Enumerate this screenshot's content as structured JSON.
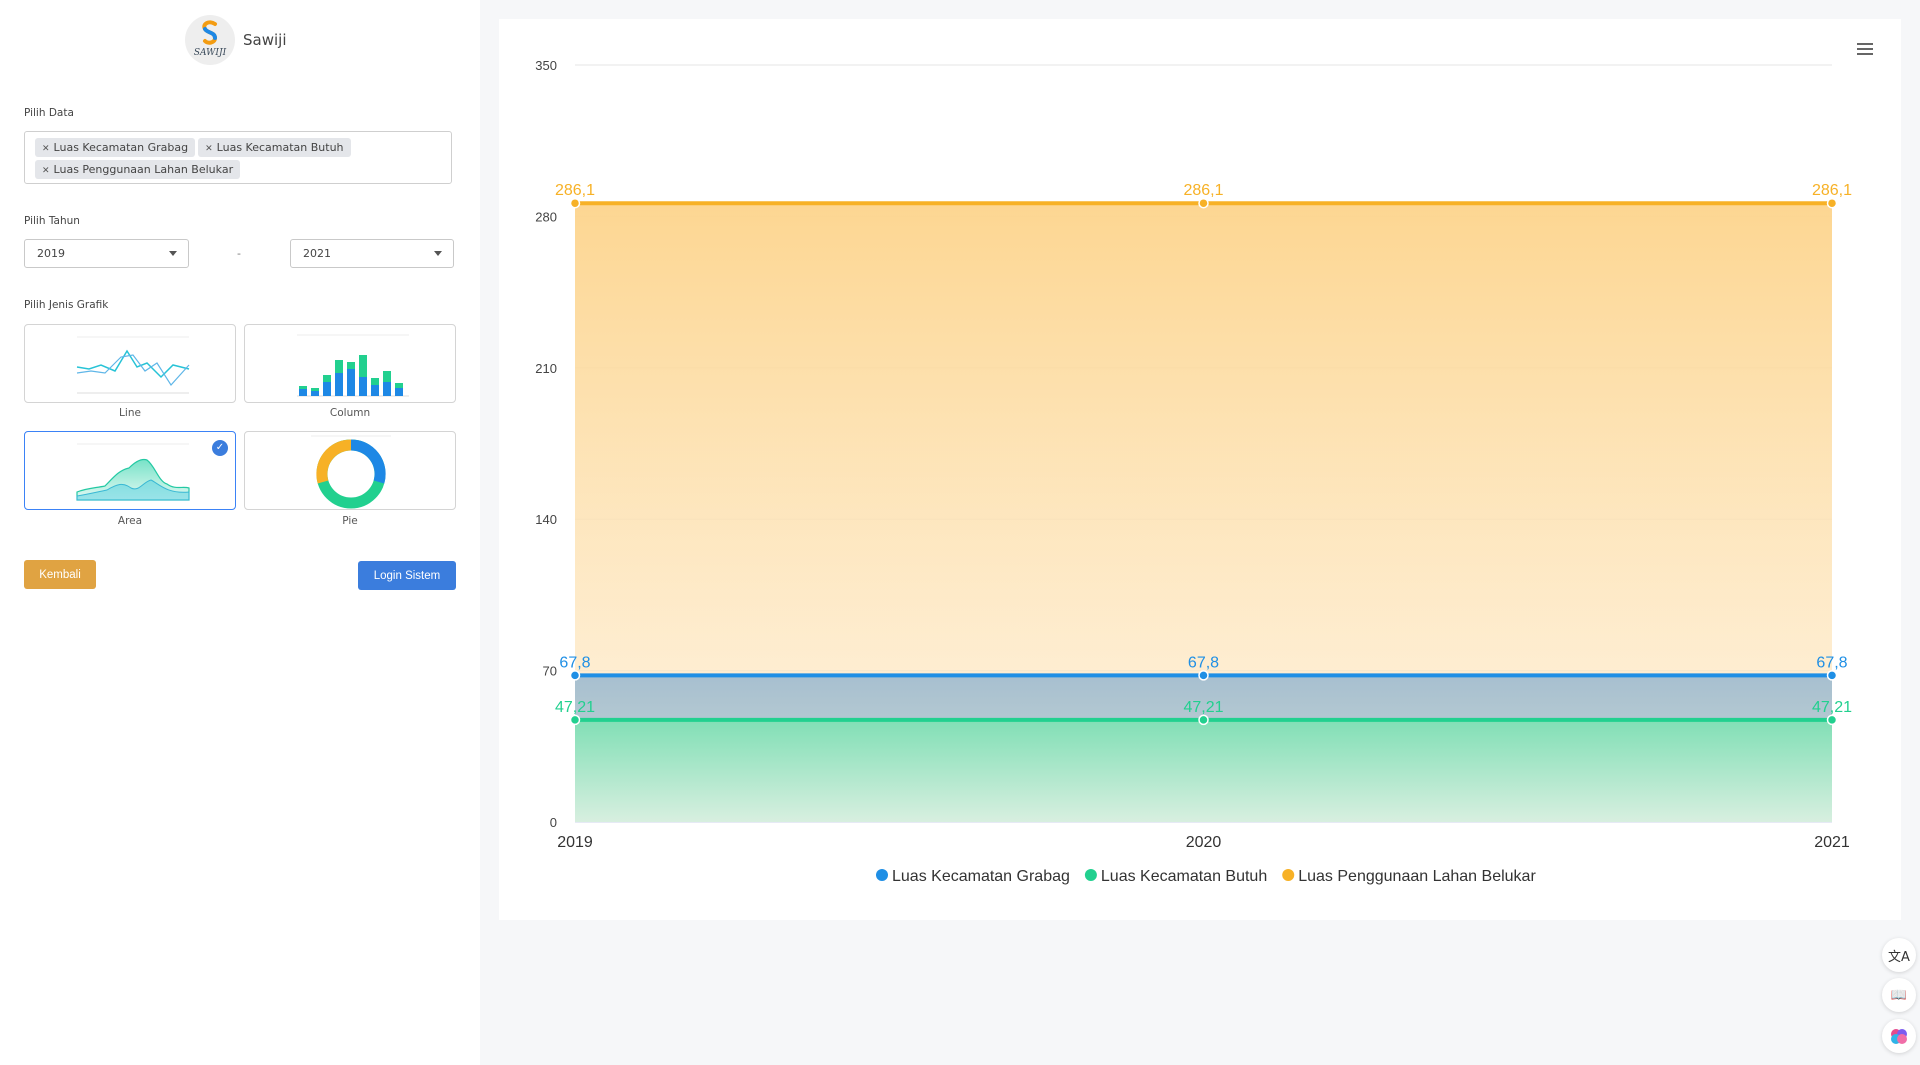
{
  "brand": {
    "name": "Sawiji",
    "logo_text": "SAWIJI"
  },
  "form": {
    "data_label": "Pilih Data",
    "selected_tags": [
      "Luas Kecamatan Grabag",
      "Luas Kecamatan Butuh",
      "Luas Penggunaan Lahan Belukar"
    ],
    "year_label": "Pilih Tahun",
    "year_from": "2019",
    "year_separator": "-",
    "year_to": "2021",
    "chart_type_label": "Pilih Jenis Grafik",
    "chart_types": [
      "Line",
      "Column",
      "Area",
      "Pie"
    ],
    "selected_chart_type": "Area",
    "back_button": "Kembali",
    "login_button": "Login Sistem"
  },
  "colors": {
    "grabag": "#1f8fe5",
    "butuh": "#22d08f",
    "belukar": "#f7b126",
    "accent": "#3b7ddd",
    "back": "#e0a342"
  },
  "icons": {
    "menu": "hamburger-menu-icon",
    "translate": "translate-icon",
    "book": "book-icon",
    "brain": "brain-icon",
    "check": "check-icon"
  },
  "chart_data": {
    "type": "area",
    "x": [
      "2019",
      "2020",
      "2021"
    ],
    "yticks": [
      0,
      70,
      140,
      210,
      280,
      350
    ],
    "ylim": [
      0,
      350
    ],
    "series": [
      {
        "name": "Luas Kecamatan Grabag",
        "values": [
          67.8,
          67.8,
          67.8
        ],
        "labels": [
          "67,8",
          "67,8",
          "67,8"
        ],
        "color": "#1f8fe5"
      },
      {
        "name": "Luas Kecamatan Butuh",
        "values": [
          47.21,
          47.21,
          47.21
        ],
        "labels": [
          "47,21",
          "47,21",
          "47,21"
        ],
        "color": "#22d08f"
      },
      {
        "name": "Luas Penggunaan Lahan Belukar",
        "values": [
          286.1,
          286.1,
          286.1
        ],
        "labels": [
          "286,1",
          "286,1",
          "286,1"
        ],
        "color": "#f7b126"
      }
    ],
    "legend_position": "bottom",
    "grid": true
  }
}
